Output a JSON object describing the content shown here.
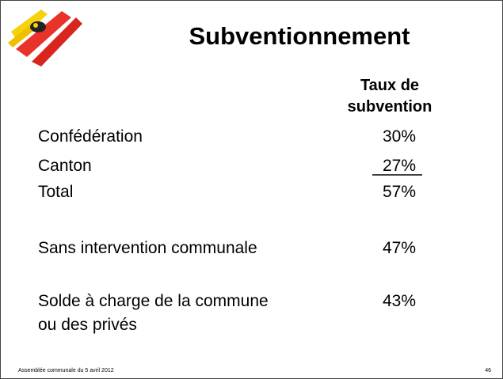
{
  "title": "Subventionnement",
  "column_header": [
    "Taux de",
    "subvention"
  ],
  "rows": [
    {
      "label": [
        "Confédération"
      ],
      "value": "30%"
    },
    {
      "label": [
        "Canton"
      ],
      "value": "27%"
    },
    {
      "label": [
        "Total"
      ],
      "value": "57%"
    },
    {
      "label": [
        "Sans intervention communale"
      ],
      "value": "47%"
    },
    {
      "label": [
        "Solde à charge de la commune",
        "ou des privés"
      ],
      "value": "43%"
    }
  ],
  "footer": {
    "text": "Assemblée communale du 5 avril 2012",
    "page": "46"
  }
}
